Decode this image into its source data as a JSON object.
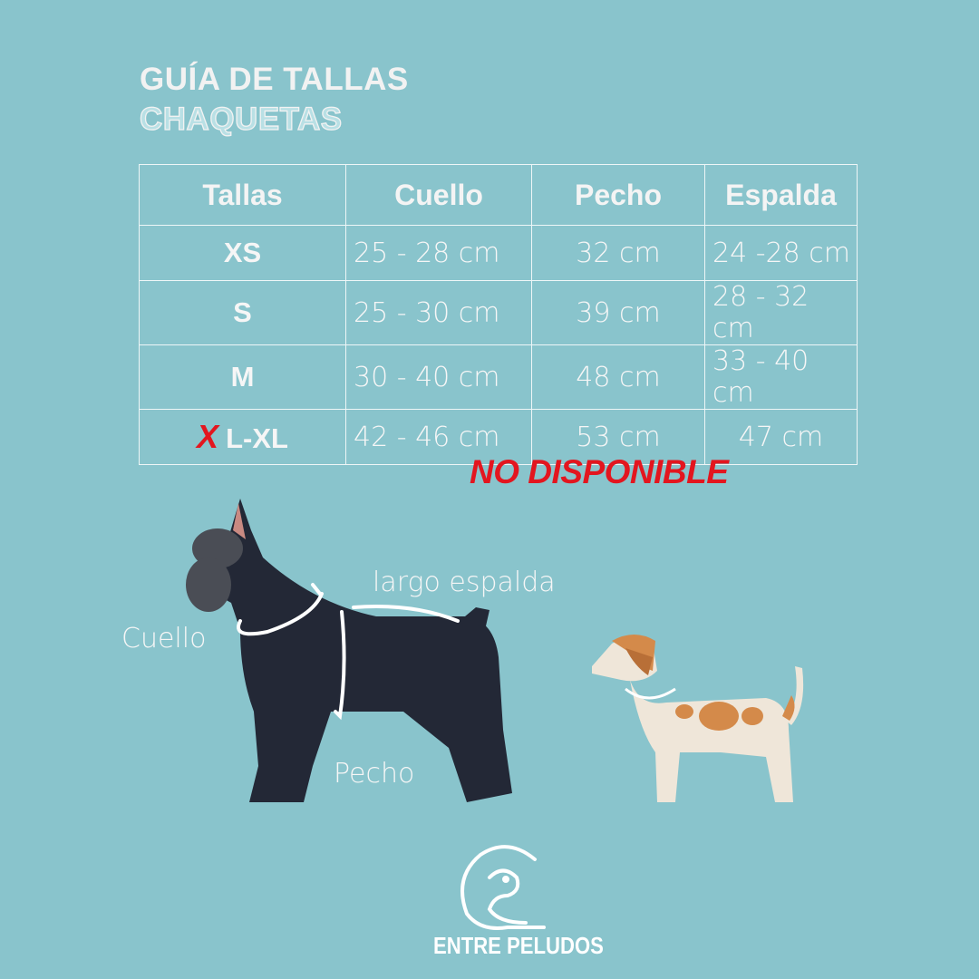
{
  "header": {
    "title": "GUÍA DE TALLAS",
    "subtitle": "CHAQUETAS"
  },
  "table": {
    "columns": [
      "Tallas",
      "Cuello",
      "Pecho",
      "Espalda"
    ],
    "rows": [
      {
        "talla": "XS",
        "cuello": "25 - 28 cm",
        "pecho": "32 cm",
        "espalda": "24 -28 cm"
      },
      {
        "talla": "S",
        "cuello": "25 - 30 cm",
        "pecho": "39 cm",
        "espalda": "28 - 32 cm"
      },
      {
        "talla": "M",
        "cuello": "30 - 40 cm",
        "pecho": "48 cm",
        "espalda": "33 - 40 cm"
      },
      {
        "talla": "L-XL",
        "cuello": "42 - 46 cm",
        "pecho": "53 cm",
        "espalda": "47 cm"
      }
    ],
    "unavailable_label": "NO DISPONIBLE",
    "strike_mark": "X",
    "alert_color": "#e3161f"
  },
  "diagram": {
    "labels": {
      "neck": "Cuello",
      "back": "largo espalda",
      "chest": "Pecho"
    }
  },
  "brand": {
    "name": "ENTRE PELUDOS"
  },
  "colors": {
    "background": "#89c4cc",
    "text": "#f4f4f4"
  }
}
